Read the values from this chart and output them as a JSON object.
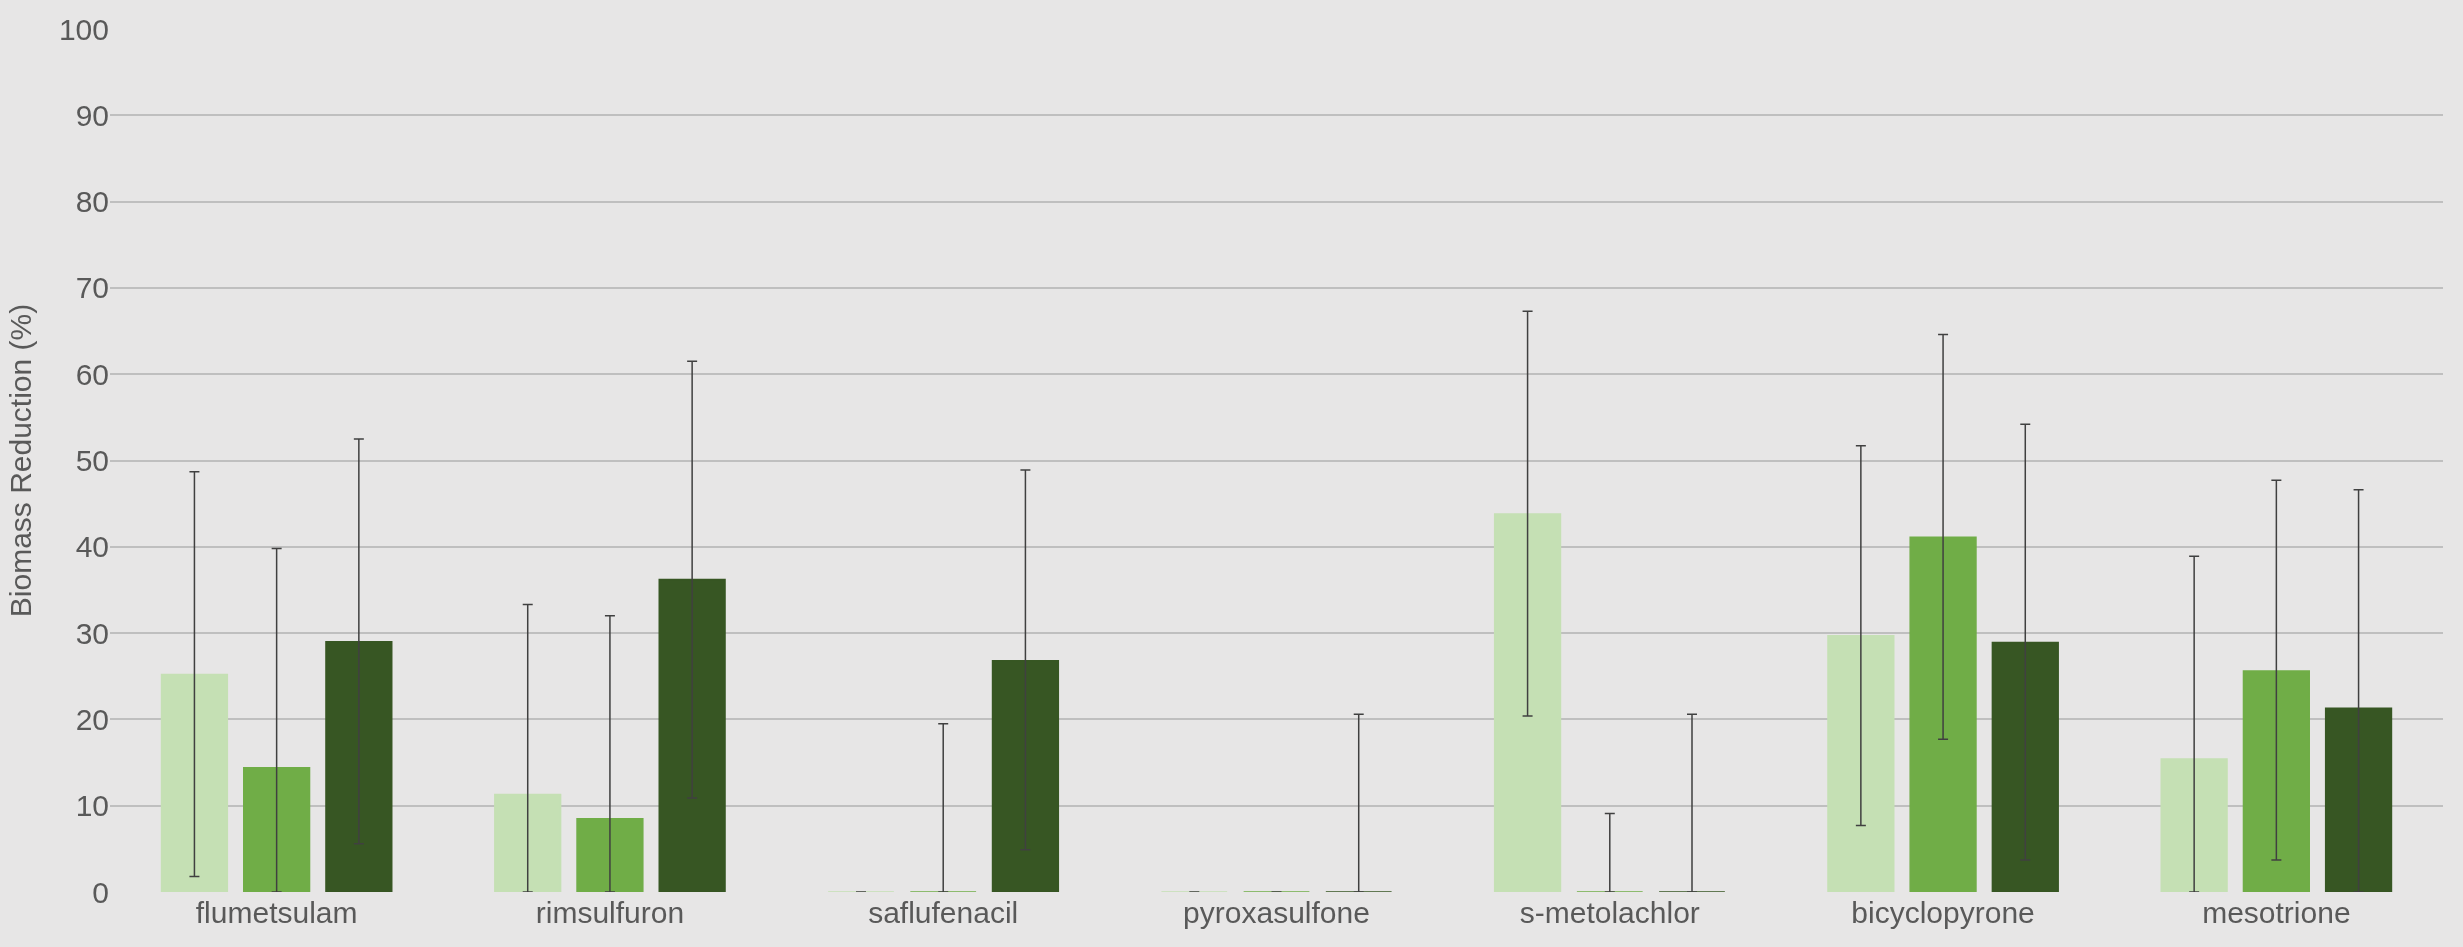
{
  "chart_data": {
    "type": "bar",
    "ylabel": "Biomass Reduction (%)",
    "categories": [
      "flumetsulam",
      "rimsulfuron",
      "saflufenacil",
      "pyroxasulfone",
      "s-metolachlor",
      "bicyclopyrone",
      "mesotrione"
    ],
    "series": [
      {
        "color": "#c5e0b4",
        "values": [
          25.2,
          11.3,
          0,
          0,
          43.8,
          29.7,
          15.4
        ],
        "errors": [
          [
            1.8,
            48.7
          ],
          [
            0,
            33.3
          ],
          null,
          null,
          [
            20.4,
            67.3
          ],
          [
            7.7,
            51.7
          ],
          [
            0,
            38.9
          ]
        ]
      },
      {
        "color": "#70ad47",
        "values": [
          14.4,
          8.5,
          0,
          0,
          0,
          41.1,
          25.6
        ],
        "errors": [
          [
            0,
            39.8
          ],
          [
            0,
            32.0
          ],
          [
            0,
            19.5
          ],
          null,
          [
            0,
            9.1
          ],
          [
            17.7,
            64.6
          ],
          [
            3.7,
            47.7
          ]
        ]
      },
      {
        "color": "#375623",
        "values": [
          29.0,
          36.2,
          26.8,
          0,
          0,
          28.9,
          21.3
        ],
        "errors": [
          [
            5.6,
            52.5
          ],
          [
            10.9,
            61.5
          ],
          [
            4.9,
            48.9
          ],
          [
            0,
            20.6
          ],
          [
            0,
            20.6
          ],
          [
            3.7,
            54.2
          ],
          [
            0,
            46.6
          ]
        ]
      }
    ],
    "ylim": [
      0,
      100
    ],
    "yticks": [
      0,
      10,
      20,
      30,
      40,
      50,
      60,
      70,
      80,
      90,
      100
    ],
    "grid": "y"
  }
}
